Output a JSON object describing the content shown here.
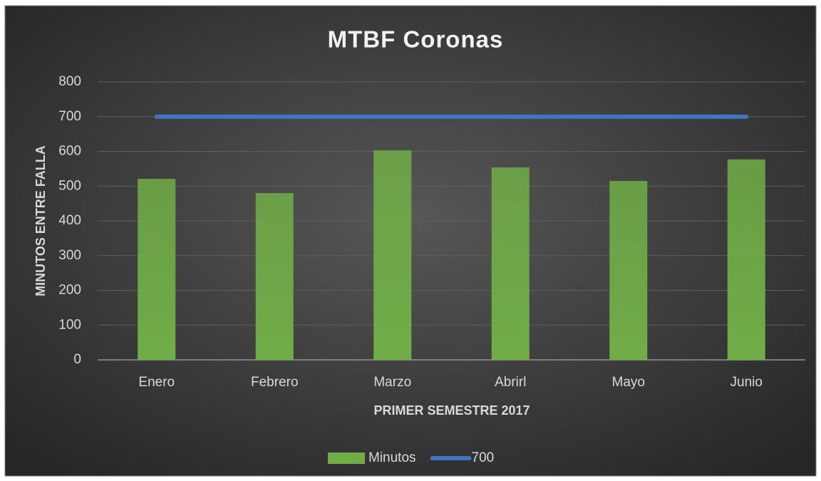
{
  "chart_data": {
    "type": "bar",
    "title": "MTBF Coronas",
    "x_label": "PRIMER SEMESTRE 2017",
    "y_label": "MINUTOS ENTRE FALLA",
    "categories": [
      "Enero",
      "Febrero",
      "Marzo",
      "Abrirl",
      "Mayo",
      "Junio"
    ],
    "series": [
      {
        "name": "Minutos",
        "type": "bar",
        "color": "#70ad47",
        "values": [
          521,
          480,
          603,
          554,
          515,
          577
        ]
      },
      {
        "name": "700",
        "type": "line",
        "color": "#4472c4",
        "values": [
          700,
          700,
          700,
          700,
          700,
          700
        ]
      }
    ],
    "ylim": [
      0,
      800
    ],
    "yticks": [
      0,
      100,
      200,
      300,
      400,
      500,
      600,
      700,
      800
    ],
    "grid": true,
    "legend": "bottom"
  }
}
